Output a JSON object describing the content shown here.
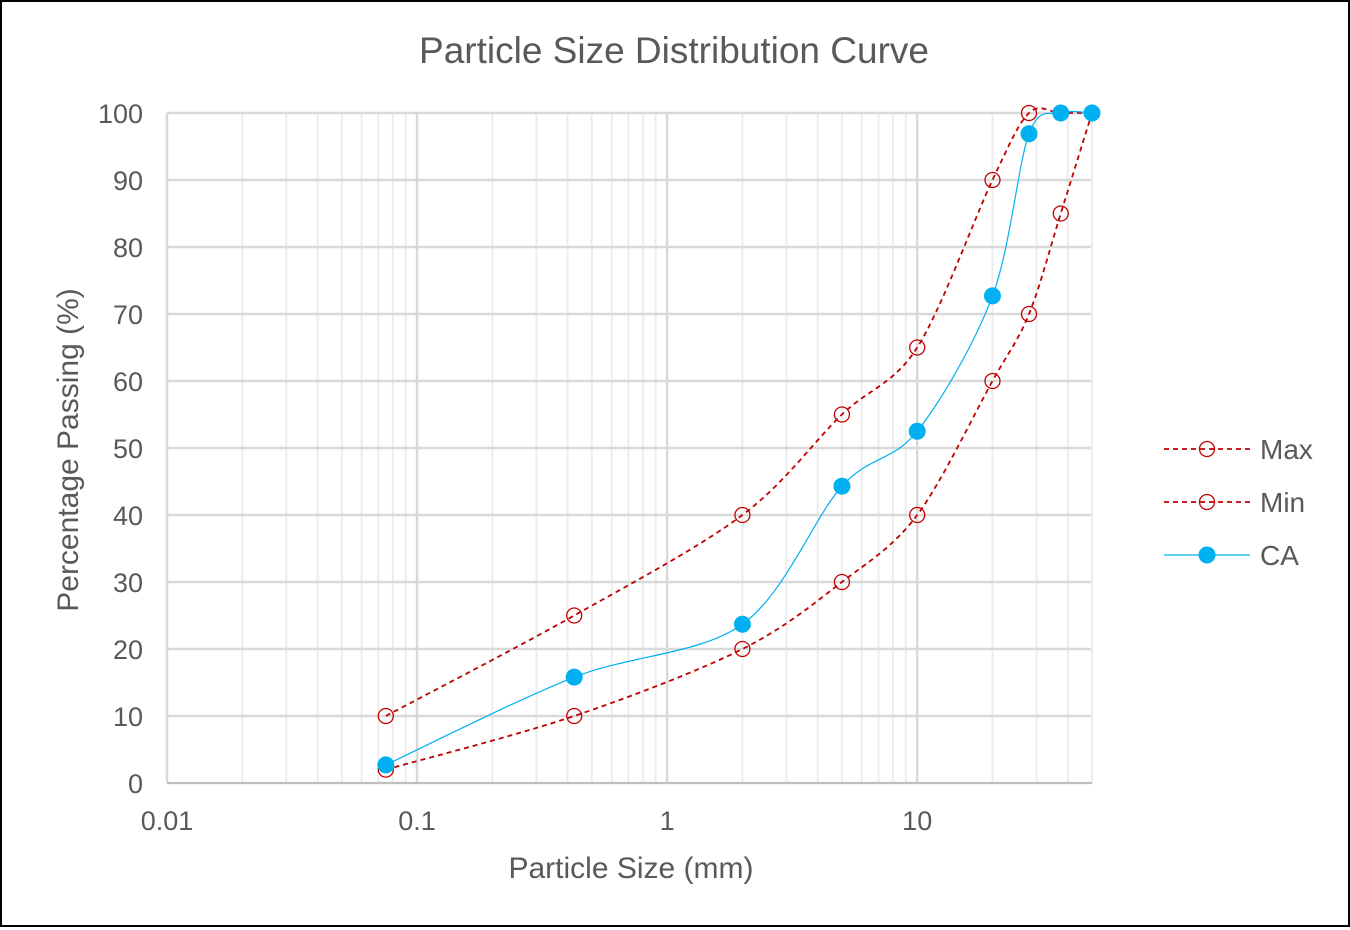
{
  "chart_data": {
    "type": "line",
    "title": "Particle Size Distribution Curve",
    "xlabel": "Particle Size (mm)",
    "ylabel": "Percentage Passing (%)",
    "xscale": "log",
    "xlim": [
      0.01,
      50
    ],
    "ylim": [
      0,
      100
    ],
    "xticks": [
      0.01,
      0.1,
      1,
      10
    ],
    "xtick_labels": [
      "0.01",
      "0.1",
      "1",
      "10"
    ],
    "yticks": [
      0,
      10,
      20,
      30,
      40,
      50,
      60,
      70,
      80,
      90,
      100
    ],
    "ytick_labels": [
      "0",
      "10",
      "20",
      "30",
      "40",
      "50",
      "60",
      "70",
      "80",
      "90",
      "100"
    ],
    "grid": true,
    "legend_position": "right",
    "series": [
      {
        "name": "Max",
        "color": "#C00000",
        "style": "dashed",
        "marker": "open-circle",
        "x": [
          0.075,
          0.425,
          2,
          5,
          10,
          20,
          28,
          37.5,
          50
        ],
        "y": [
          10,
          25,
          40,
          55,
          65,
          90,
          100,
          100,
          100
        ]
      },
      {
        "name": "Min",
        "color": "#C00000",
        "style": "dashed",
        "marker": "open-circle",
        "x": [
          0.075,
          0.425,
          2,
          5,
          10,
          20,
          28,
          37.5,
          50
        ],
        "y": [
          2,
          10,
          20,
          30,
          40,
          60,
          70,
          85,
          100
        ]
      },
      {
        "name": "CA",
        "color": "#00B0F0",
        "style": "solid",
        "marker": "filled-circle",
        "x": [
          0.075,
          0.425,
          2,
          5,
          10,
          20,
          28,
          37.5,
          50
        ],
        "y": [
          2.7,
          15.8,
          23.7,
          44.3,
          52.5,
          72.7,
          96.9,
          100,
          100
        ]
      }
    ]
  }
}
